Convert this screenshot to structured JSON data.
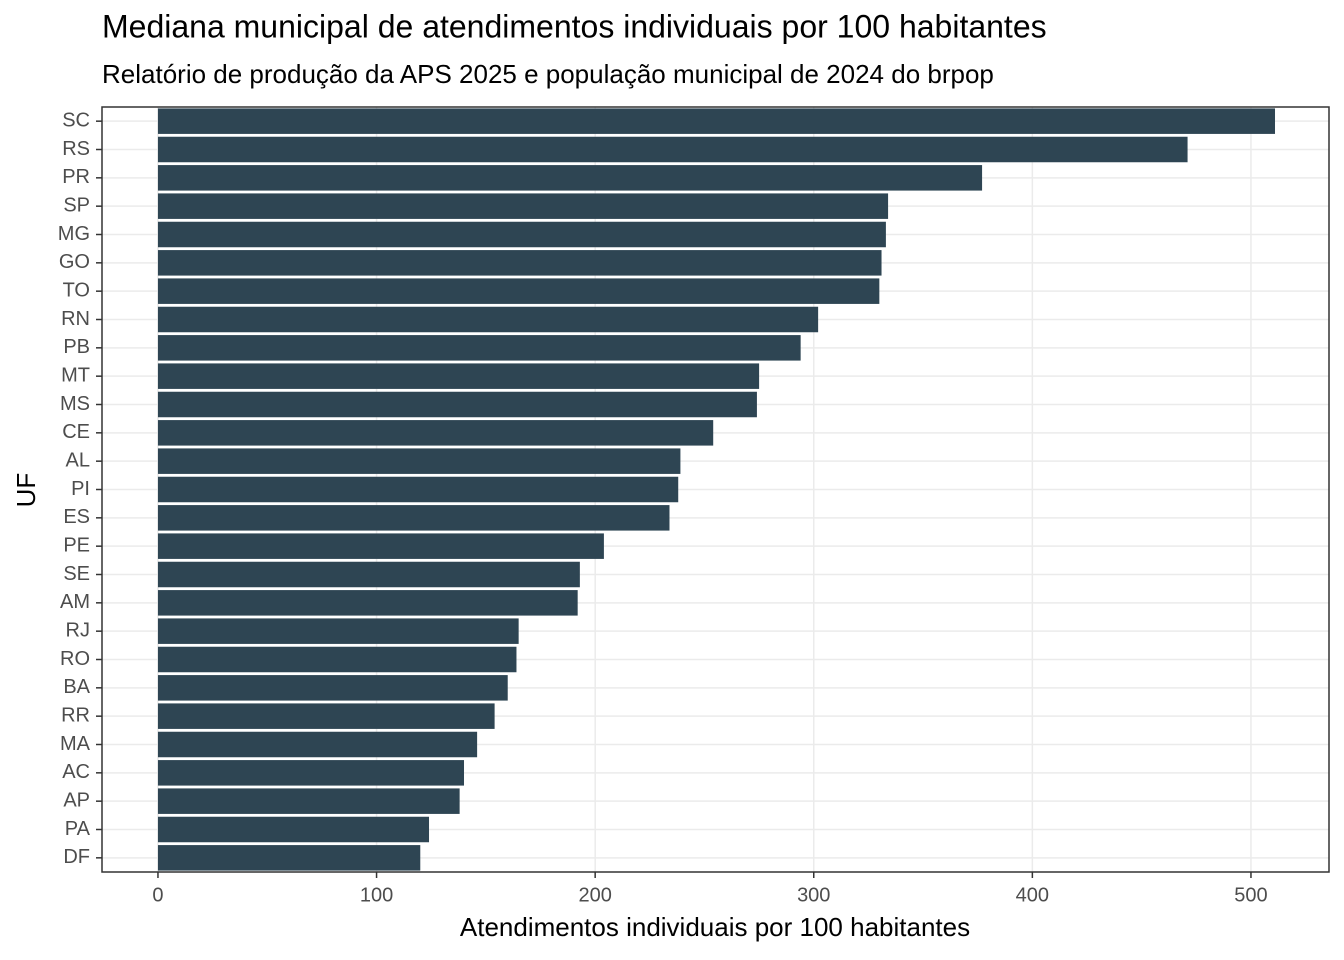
{
  "chart_data": {
    "type": "bar",
    "orientation": "horizontal",
    "title": "Mediana municipal de atendimentos individuais por 100 habitantes",
    "subtitle": "Relatório de produção da APS 2025 e população municipal de 2024 do brpop",
    "x_label": "Atendimentos individuais por 100 habitantes",
    "y_label": "UF",
    "categories": [
      "SC",
      "RS",
      "PR",
      "SP",
      "MG",
      "GO",
      "TO",
      "RN",
      "PB",
      "MT",
      "MS",
      "CE",
      "AL",
      "PI",
      "ES",
      "PE",
      "SE",
      "AM",
      "RJ",
      "RO",
      "BA",
      "RR",
      "MA",
      "AC",
      "AP",
      "PA",
      "DF"
    ],
    "values": [
      511,
      471,
      377,
      334,
      333,
      331,
      330,
      302,
      294,
      275,
      274,
      254,
      239,
      238,
      234,
      204,
      193,
      192,
      165,
      164,
      160,
      154,
      146,
      140,
      138,
      124,
      120
    ],
    "color": "#2e4553",
    "xlim": [
      -25.6,
      535.7
    ],
    "xticks": [
      0,
      100,
      200,
      300,
      400,
      500
    ],
    "grid": true
  }
}
